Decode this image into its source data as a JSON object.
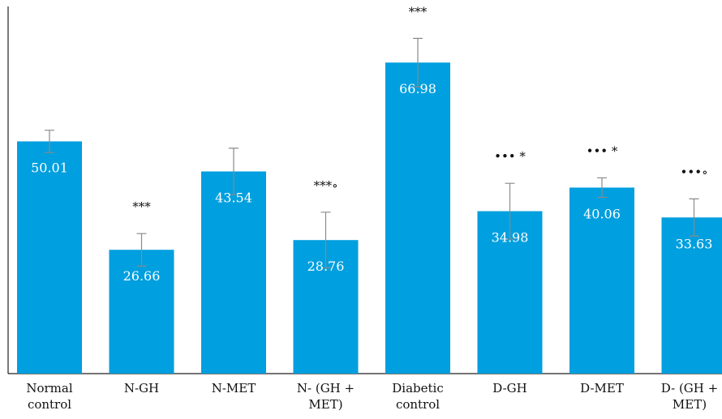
{
  "chart_data": {
    "type": "bar",
    "categories": [
      [
        "Normal",
        "control"
      ],
      [
        "N-GH"
      ],
      [
        "N-MET"
      ],
      [
        "N- (GH +",
        "MET)"
      ],
      [
        "Diabetic",
        "control"
      ],
      [
        "D-GH"
      ],
      [
        "D-MET"
      ],
      [
        "D- (GH +",
        "MET)"
      ]
    ],
    "values": [
      50.01,
      26.66,
      43.54,
      28.76,
      66.98,
      34.98,
      40.06,
      33.63
    ],
    "value_labels": [
      "50.01",
      "26.66",
      "43.54",
      "28.76",
      "66.98",
      "34.98",
      "40.06",
      "33.63"
    ],
    "error": [
      2.4,
      3.5,
      5.0,
      6.0,
      5.2,
      6.0,
      2.1,
      4.0
    ],
    "significance": [
      "",
      "***",
      "",
      "***∘",
      "***",
      "••• *",
      "••• *",
      "•••∘"
    ],
    "ylim": [
      0,
      80
    ],
    "grid": false,
    "bar_color": "#009FDF",
    "error_color": "#8a8a8a",
    "title": "",
    "xlabel": "",
    "ylabel": ""
  }
}
